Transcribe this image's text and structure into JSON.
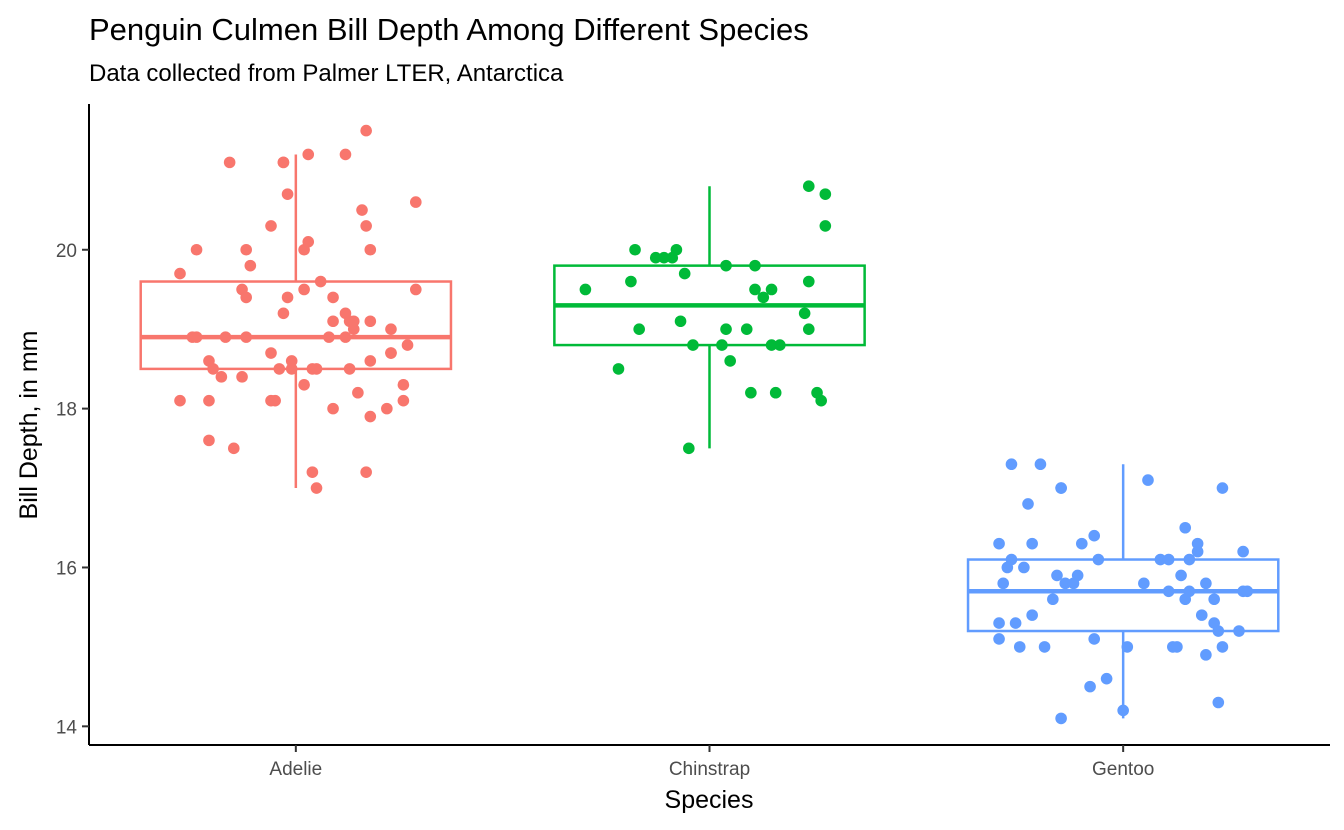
{
  "chart_data": {
    "type": "boxplot",
    "title": "Penguin Culmen Bill Depth Among Different Species",
    "subtitle": "Data collected from Palmer LTER, Antarctica",
    "xlabel": "Species",
    "ylabel": "Bill Depth, in mm",
    "categories": [
      "Adelie",
      "Chinstrap",
      "Gentoo"
    ],
    "ylim": [
      13.765,
      21.835
    ],
    "yticks": [
      14,
      16,
      18,
      20
    ],
    "grid": false,
    "legend": "none",
    "series": [
      {
        "category": "Adelie",
        "color": "#F8766D",
        "box": {
          "min": 17.0,
          "q1": 18.5,
          "median": 18.9,
          "q3": 19.6,
          "max": 21.2
        },
        "points": [
          [
            -0.28,
            19.7
          ],
          [
            -0.24,
            20.0
          ],
          [
            -0.12,
            20.0
          ],
          [
            -0.11,
            19.8
          ],
          [
            0.02,
            20.0
          ],
          [
            0.03,
            20.1
          ],
          [
            0.16,
            20.5
          ],
          [
            0.17,
            20.3
          ],
          [
            0.18,
            20.0
          ],
          [
            0.29,
            20.6
          ],
          [
            0.29,
            19.5
          ],
          [
            -0.16,
            21.1
          ],
          [
            -0.03,
            21.1
          ],
          [
            -0.03,
            21.1
          ],
          [
            0.03,
            21.2
          ],
          [
            0.12,
            21.2
          ],
          [
            0.17,
            21.5
          ],
          [
            -0.02,
            20.7
          ],
          [
            -0.06,
            20.3
          ],
          [
            0.02,
            19.5
          ],
          [
            0.06,
            19.6
          ],
          [
            0.09,
            19.4
          ],
          [
            -0.13,
            19.5
          ],
          [
            -0.12,
            19.4
          ],
          [
            -0.02,
            19.4
          ],
          [
            -0.03,
            19.2
          ],
          [
            0.12,
            19.2
          ],
          [
            0.13,
            19.1
          ],
          [
            0.14,
            19.1
          ],
          [
            0.09,
            19.1
          ],
          [
            0.18,
            19.1
          ],
          [
            0.23,
            19.0
          ],
          [
            -0.25,
            18.9
          ],
          [
            -0.24,
            18.9
          ],
          [
            -0.17,
            18.9
          ],
          [
            -0.12,
            18.9
          ],
          [
            0.08,
            18.9
          ],
          [
            0.12,
            18.9
          ],
          [
            0.14,
            19.0
          ],
          [
            0.23,
            18.7
          ],
          [
            0.23,
            18.7
          ],
          [
            0.27,
            18.8
          ],
          [
            -0.21,
            18.6
          ],
          [
            -0.2,
            18.5
          ],
          [
            -0.18,
            18.4
          ],
          [
            -0.13,
            18.4
          ],
          [
            -0.06,
            18.7
          ],
          [
            -0.04,
            18.5
          ],
          [
            -0.01,
            18.6
          ],
          [
            -0.01,
            18.5
          ],
          [
            0.04,
            18.5
          ],
          [
            0.05,
            18.5
          ],
          [
            0.13,
            18.5
          ],
          [
            0.18,
            18.6
          ],
          [
            -0.28,
            18.1
          ],
          [
            -0.21,
            18.1
          ],
          [
            -0.06,
            18.1
          ],
          [
            -0.05,
            18.1
          ],
          [
            0.02,
            18.3
          ],
          [
            0.09,
            18.0
          ],
          [
            0.15,
            18.2
          ],
          [
            0.18,
            17.9
          ],
          [
            0.22,
            18.0
          ],
          [
            0.26,
            18.1
          ],
          [
            0.26,
            18.3
          ],
          [
            -0.21,
            17.6
          ],
          [
            -0.15,
            17.5
          ],
          [
            0.04,
            17.2
          ],
          [
            0.05,
            17.0
          ],
          [
            0.17,
            17.2
          ]
        ]
      },
      {
        "category": "Chinstrap",
        "color": "#00BA38",
        "box": {
          "min": 17.5,
          "q1": 18.8,
          "median": 19.3,
          "q3": 19.8,
          "max": 20.8
        },
        "points": [
          [
            0.24,
            20.8
          ],
          [
            0.28,
            20.7
          ],
          [
            0.28,
            20.3
          ],
          [
            -0.18,
            20.0
          ],
          [
            -0.13,
            19.9
          ],
          [
            -0.11,
            19.9
          ],
          [
            -0.09,
            19.9
          ],
          [
            -0.08,
            20.0
          ],
          [
            0.04,
            19.8
          ],
          [
            0.11,
            19.8
          ],
          [
            -0.3,
            19.5
          ],
          [
            -0.19,
            19.6
          ],
          [
            -0.06,
            19.7
          ],
          [
            0.11,
            19.5
          ],
          [
            0.15,
            19.5
          ],
          [
            0.13,
            19.4
          ],
          [
            0.24,
            19.6
          ],
          [
            0.23,
            19.2
          ],
          [
            0.24,
            19.0
          ],
          [
            -0.17,
            19.0
          ],
          [
            -0.07,
            19.1
          ],
          [
            0.04,
            19.0
          ],
          [
            0.09,
            19.0
          ],
          [
            -0.04,
            18.8
          ],
          [
            0.03,
            18.8
          ],
          [
            0.05,
            18.6
          ],
          [
            0.15,
            18.8
          ],
          [
            0.17,
            18.8
          ],
          [
            -0.22,
            18.5
          ],
          [
            0.1,
            18.2
          ],
          [
            0.16,
            18.2
          ],
          [
            0.26,
            18.2
          ],
          [
            0.27,
            18.1
          ],
          [
            -0.05,
            17.5
          ]
        ]
      },
      {
        "category": "Gentoo",
        "color": "#619CFF",
        "box": {
          "min": 14.1,
          "q1": 15.2,
          "median": 15.7,
          "q3": 16.1,
          "max": 17.3
        },
        "points": [
          [
            -0.27,
            17.3
          ],
          [
            -0.2,
            17.3
          ],
          [
            -0.15,
            17.0
          ],
          [
            -0.15,
            17.0
          ],
          [
            0.06,
            17.1
          ],
          [
            0.24,
            17.0
          ],
          [
            -0.23,
            16.8
          ],
          [
            0.15,
            16.5
          ],
          [
            -0.07,
            16.4
          ],
          [
            -0.1,
            16.3
          ],
          [
            -0.3,
            16.3
          ],
          [
            -0.22,
            16.3
          ],
          [
            0.18,
            16.2
          ],
          [
            0.18,
            16.3
          ],
          [
            0.29,
            16.2
          ],
          [
            -0.27,
            16.1
          ],
          [
            -0.28,
            16.0
          ],
          [
            -0.24,
            16.0
          ],
          [
            -0.06,
            16.1
          ],
          [
            0.09,
            16.1
          ],
          [
            0.11,
            16.1
          ],
          [
            0.16,
            16.1
          ],
          [
            -0.16,
            15.9
          ],
          [
            -0.11,
            15.9
          ],
          [
            -0.14,
            15.8
          ],
          [
            -0.12,
            15.8
          ],
          [
            -0.29,
            15.8
          ],
          [
            0.05,
            15.8
          ],
          [
            0.14,
            15.9
          ],
          [
            0.2,
            15.8
          ],
          [
            0.11,
            15.7
          ],
          [
            0.16,
            15.7
          ],
          [
            0.29,
            15.7
          ],
          [
            0.3,
            15.7
          ],
          [
            0.22,
            15.6
          ],
          [
            0.15,
            15.6
          ],
          [
            -0.3,
            15.3
          ],
          [
            -0.26,
            15.3
          ],
          [
            -0.22,
            15.4
          ],
          [
            -0.17,
            15.6
          ],
          [
            0.19,
            15.4
          ],
          [
            0.22,
            15.3
          ],
          [
            0.23,
            15.2
          ],
          [
            0.28,
            15.2
          ],
          [
            -0.3,
            15.1
          ],
          [
            -0.25,
            15.0
          ],
          [
            -0.19,
            15.0
          ],
          [
            -0.07,
            15.1
          ],
          [
            0.01,
            15.0
          ],
          [
            0.12,
            15.0
          ],
          [
            0.13,
            15.0
          ],
          [
            0.2,
            14.9
          ],
          [
            0.24,
            15.0
          ],
          [
            -0.04,
            14.6
          ],
          [
            -0.08,
            14.5
          ],
          [
            0.0,
            14.2
          ],
          [
            -0.15,
            14.1
          ],
          [
            0.23,
            14.3
          ]
        ]
      }
    ]
  }
}
